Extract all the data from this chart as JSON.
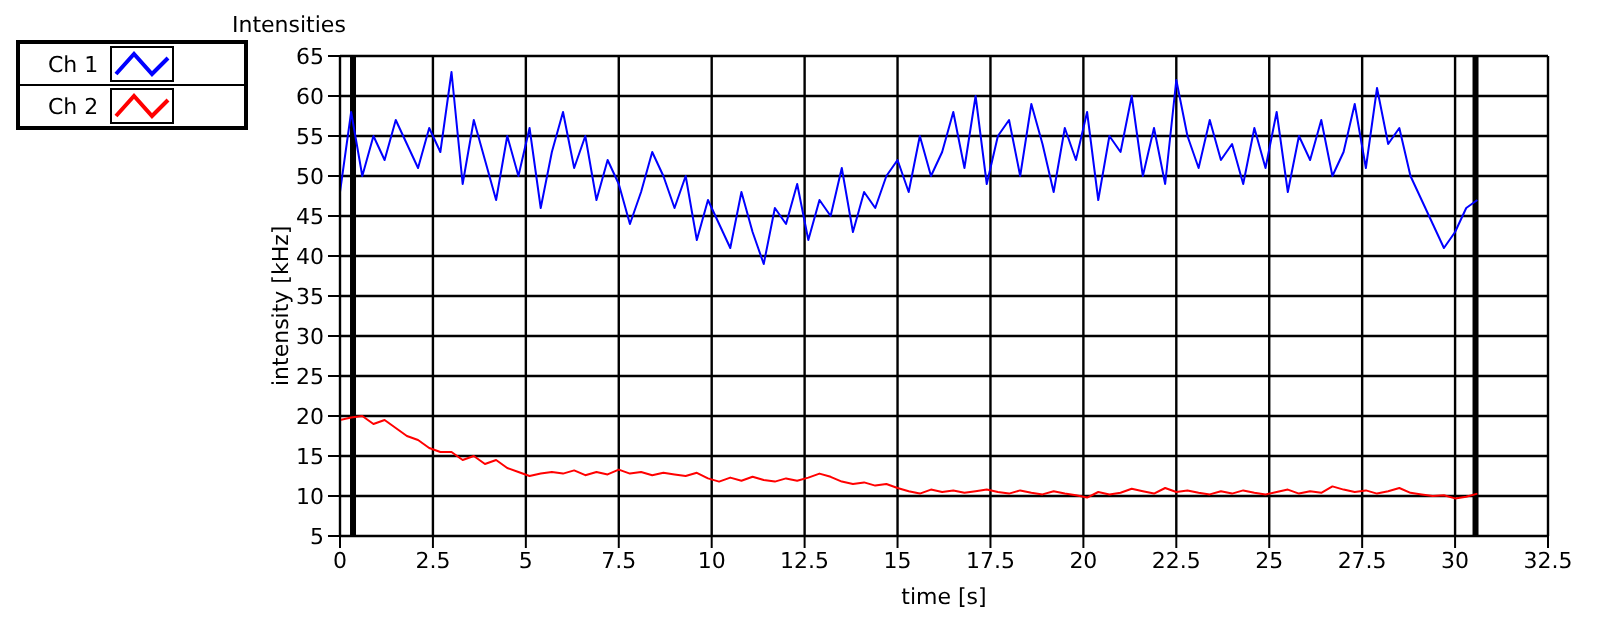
{
  "chart_data": {
    "type": "line",
    "title": "Intensities",
    "xlabel": "time [s]",
    "ylabel": "intensity [kHz]",
    "x": [
      0,
      0.3,
      0.6,
      0.9,
      1.2,
      1.5,
      1.8,
      2.1,
      2.4,
      2.7,
      3,
      3.3,
      3.6,
      3.9,
      4.2,
      4.5,
      4.8,
      5.1,
      5.4,
      5.7,
      6,
      6.3,
      6.6,
      6.9,
      7.2,
      7.5,
      7.8,
      8.1,
      8.4,
      8.7,
      9,
      9.3,
      9.6,
      9.9,
      10.2,
      10.5,
      10.8,
      11.1,
      11.4,
      11.7,
      12,
      12.3,
      12.6,
      12.9,
      13.2,
      13.5,
      13.8,
      14.1,
      14.4,
      14.7,
      15,
      15.3,
      15.6,
      15.9,
      16.2,
      16.5,
      16.8,
      17.1,
      17.4,
      17.7,
      18,
      18.3,
      18.6,
      18.9,
      19.2,
      19.5,
      19.8,
      20.1,
      20.4,
      20.7,
      21,
      21.3,
      21.6,
      21.9,
      22.2,
      22.5,
      22.8,
      23.1,
      23.4,
      23.7,
      24,
      24.3,
      24.6,
      24.9,
      25.2,
      25.5,
      25.8,
      26.1,
      26.4,
      26.7,
      27,
      27.3,
      27.6,
      27.9,
      28.2,
      28.5,
      28.8,
      29.1,
      29.4,
      29.7,
      30,
      30.3,
      30.6
    ],
    "series": [
      {
        "name": "Ch 1",
        "color": "#0000ff",
        "values": [
          48,
          58,
          50,
          55,
          52,
          57,
          54,
          51,
          56,
          53,
          63,
          49,
          57,
          52,
          47,
          55,
          50,
          56,
          46,
          53,
          58,
          51,
          55,
          47,
          52,
          49,
          44,
          48,
          53,
          50,
          46,
          50,
          42,
          47,
          44,
          41,
          48,
          43,
          39,
          46,
          44,
          49,
          42,
          47,
          45,
          51,
          43,
          48,
          46,
          50,
          52,
          48,
          55,
          50,
          53,
          58,
          51,
          60,
          49,
          55,
          57,
          50,
          59,
          54,
          48,
          56,
          52,
          58,
          47,
          55,
          53,
          60,
          50,
          56,
          49,
          62,
          55,
          51,
          57,
          52,
          54,
          49,
          56,
          51,
          58,
          48,
          55,
          52,
          57,
          50,
          53,
          59,
          51,
          61,
          54,
          56,
          50,
          47,
          44,
          41,
          43,
          46,
          47
        ]
      },
      {
        "name": "Ch 2",
        "color": "#ff0000",
        "values": [
          19.5,
          19.8,
          20,
          19,
          19.5,
          18.5,
          17.5,
          17,
          16,
          15.5,
          15.5,
          14.5,
          15,
          14,
          14.5,
          13.5,
          13,
          12.5,
          12.8,
          13,
          12.8,
          13.2,
          12.6,
          13,
          12.7,
          13.3,
          12.8,
          13,
          12.6,
          12.9,
          12.7,
          12.5,
          12.9,
          12.2,
          11.8,
          12.3,
          11.9,
          12.4,
          12,
          11.8,
          12.2,
          11.9,
          12.3,
          12.8,
          12.4,
          11.8,
          11.5,
          11.7,
          11.3,
          11.5,
          11,
          10.6,
          10.3,
          10.8,
          10.5,
          10.7,
          10.4,
          10.6,
          10.8,
          10.5,
          10.3,
          10.7,
          10.4,
          10.2,
          10.6,
          10.3,
          10.1,
          9.8,
          10.5,
          10.2,
          10.4,
          10.9,
          10.6,
          10.3,
          11,
          10.5,
          10.7,
          10.4,
          10.2,
          10.6,
          10.3,
          10.7,
          10.4,
          10.2,
          10.5,
          10.8,
          10.3,
          10.6,
          10.4,
          11.2,
          10.8,
          10.5,
          10.7,
          10.3,
          10.6,
          11,
          10.4,
          10.2,
          10,
          10.1,
          9.7,
          9.9,
          10.3
        ]
      }
    ],
    "xlim": [
      0,
      32.5
    ],
    "xticks": [
      0,
      2.5,
      5,
      7.5,
      10,
      12.5,
      15,
      17.5,
      20,
      22.5,
      25,
      27.5,
      30,
      32.5
    ],
    "ylim": [
      5,
      65
    ],
    "yticks": [
      5,
      10,
      15,
      20,
      25,
      30,
      35,
      40,
      45,
      50,
      55,
      60,
      65
    ],
    "ref_lines": [
      {
        "axis": "x",
        "value": 0.35,
        "color": "#000000"
      },
      {
        "axis": "x",
        "value": 30.55,
        "color": "#000000"
      }
    ],
    "grid": true,
    "legend": "top left",
    "marker": "none",
    "line_style": "solid"
  }
}
